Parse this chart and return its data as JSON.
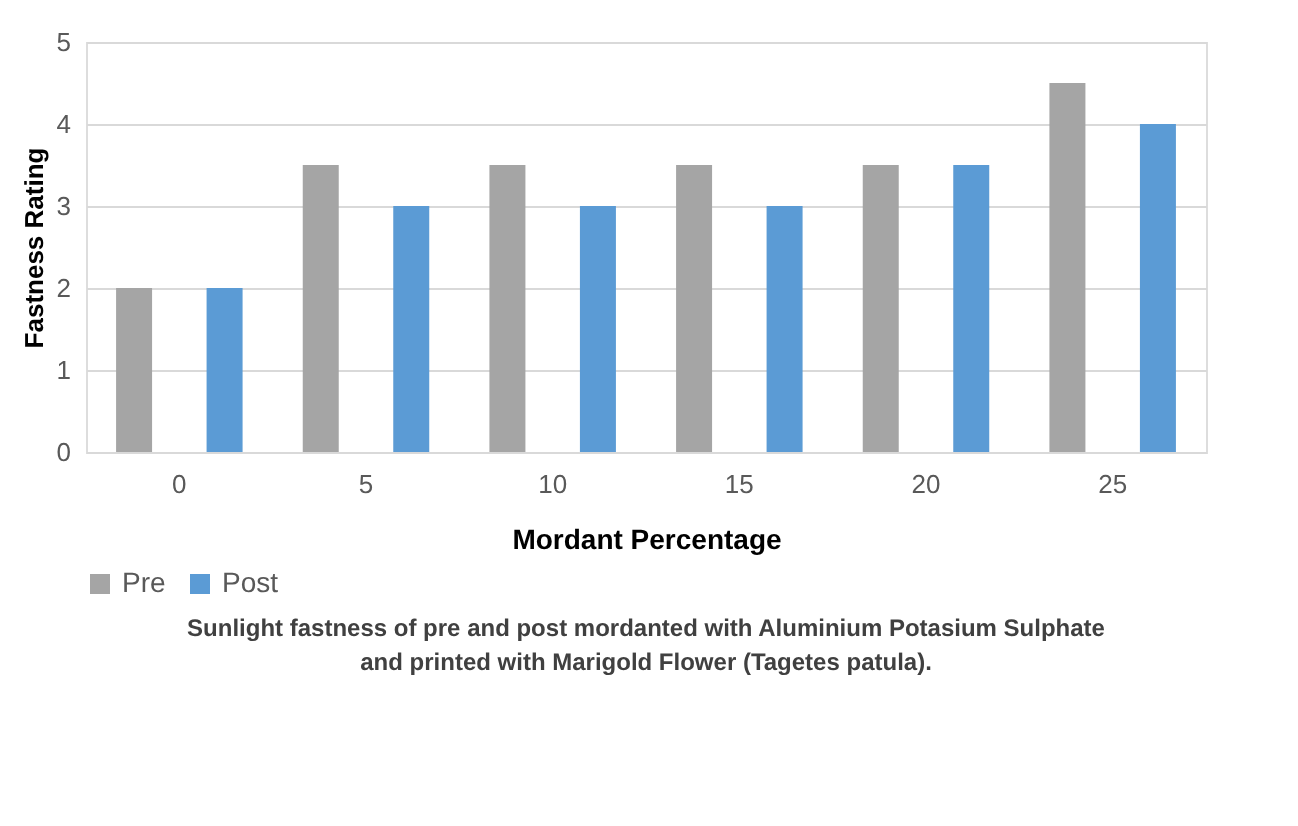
{
  "chart_data": {
    "type": "bar",
    "categories": [
      "0",
      "5",
      "10",
      "15",
      "20",
      "25"
    ],
    "series": [
      {
        "name": "Pre",
        "color": "#a5a5a5",
        "values": [
          2,
          3.5,
          3.5,
          3.5,
          3.5,
          4.5
        ]
      },
      {
        "name": "Post",
        "color": "#5b9bd5",
        "values": [
          2,
          3,
          3,
          3,
          3.5,
          4
        ]
      }
    ],
    "xlabel": "Mordant Percentage",
    "ylabel": "Fastness Rating",
    "ylim": [
      0,
      5
    ],
    "yticks": [
      0,
      1,
      2,
      3,
      4,
      5
    ],
    "grid": "y",
    "legend": "bottom",
    "annotations": [
      "Sunlight fastness of pre and post mordanted with Aluminium Potasium Sulphate",
      "and printed with Marigold Flower (Tagetes patula)."
    ]
  }
}
